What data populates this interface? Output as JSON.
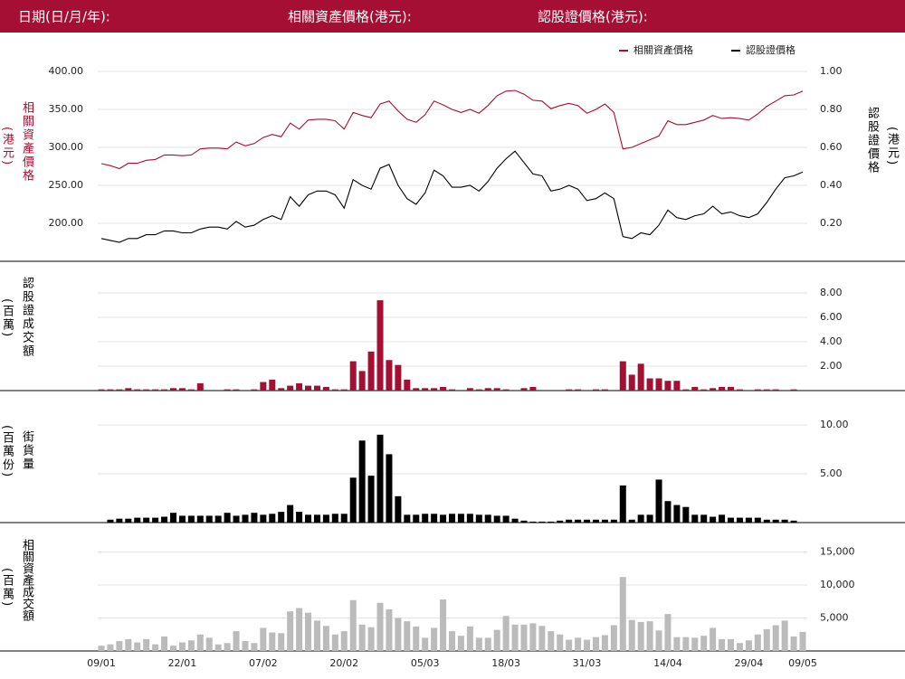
{
  "header": {
    "date_label": "日期(日/月/年):",
    "underlying_label": "相關資產價格(港元):",
    "warrant_label": "認股證價格(港元):"
  },
  "chart_data": [
    {
      "type": "line",
      "y_label": "相關資產價格",
      "y_unit": "(港元)",
      "y2_label": "認股證價格",
      "y2_unit": "(港元)",
      "legend": "top-right",
      "grid": true,
      "ylim": [
        175,
        415
      ],
      "yticks": [
        {
          "value": 200,
          "label": "200.00"
        },
        {
          "value": 250,
          "label": "250.00"
        },
        {
          "value": 300,
          "label": "300.00"
        },
        {
          "value": 350,
          "label": "350.00"
        },
        {
          "value": 400,
          "label": "400.00"
        }
      ],
      "y2lim": [
        0.1,
        1.06
      ],
      "y2ticks": [
        {
          "value": 0.2,
          "label": "0.20"
        },
        {
          "value": 0.4,
          "label": "0.40"
        },
        {
          "value": 0.6,
          "label": "0.60"
        },
        {
          "value": 0.8,
          "label": "0.80"
        },
        {
          "value": 1.0,
          "label": "1.00"
        }
      ],
      "series": [
        {
          "name": "相關資產價格",
          "color": "#a50f34",
          "values": [
            278.6,
            276,
            272,
            279,
            279,
            283,
            284,
            290,
            290,
            289,
            290,
            298,
            299,
            299,
            298,
            307,
            302,
            305,
            313,
            317,
            314,
            332,
            324,
            336,
            337,
            337,
            335,
            324,
            346,
            342,
            339,
            357,
            361,
            348,
            337,
            333,
            343,
            361,
            356,
            350,
            346,
            350,
            345,
            355,
            368,
            374,
            375,
            370,
            362,
            361,
            351,
            355,
            358,
            355,
            345,
            350,
            357,
            346,
            298,
            300,
            305,
            310,
            315,
            335,
            330,
            330,
            333,
            336,
            342,
            338,
            339,
            338,
            336,
            344,
            354,
            361,
            368,
            369,
            374
          ]
        },
        {
          "name": "認股證價格",
          "color": "#000000",
          "axis": "y2",
          "values": [
            0.12,
            0.11,
            0.1,
            0.12,
            0.12,
            0.14,
            0.14,
            0.16,
            0.16,
            0.15,
            0.15,
            0.17,
            0.18,
            0.18,
            0.17,
            0.21,
            0.18,
            0.19,
            0.22,
            0.24,
            0.22,
            0.34,
            0.29,
            0.35,
            0.37,
            0.37,
            0.35,
            0.28,
            0.43,
            0.4,
            0.38,
            0.49,
            0.51,
            0.4,
            0.33,
            0.3,
            0.36,
            0.48,
            0.45,
            0.39,
            0.39,
            0.4,
            0.37,
            0.42,
            0.49,
            0.54,
            0.58,
            0.52,
            0.46,
            0.45,
            0.37,
            0.38,
            0.4,
            0.38,
            0.32,
            0.33,
            0.36,
            0.33,
            0.13,
            0.12,
            0.15,
            0.14,
            0.19,
            0.27,
            0.23,
            0.22,
            0.24,
            0.25,
            0.29,
            0.25,
            0.26,
            0.24,
            0.23,
            0.25,
            0.31,
            0.38,
            0.44,
            0.45,
            0.47
          ]
        }
      ]
    },
    {
      "type": "bar",
      "y_label": "認股證成交額",
      "y_unit": "(百萬)",
      "color": "#a50f34",
      "grid": true,
      "ylim": [
        0,
        10
      ],
      "yticks": [
        {
          "value": 2,
          "label": "2.00"
        },
        {
          "value": 4,
          "label": "4.00"
        },
        {
          "value": 6,
          "label": "6.00"
        },
        {
          "value": 8,
          "label": "8.00"
        }
      ],
      "values": [
        0.1,
        0.1,
        0.1,
        0.2,
        0.1,
        0.1,
        0.1,
        0.1,
        0.2,
        0.2,
        0.1,
        0.6,
        0,
        0,
        0.1,
        0.1,
        0,
        0.1,
        0.7,
        0.9,
        0.2,
        0.4,
        0.6,
        0.4,
        0.4,
        0.3,
        0.1,
        0.1,
        2.4,
        1.6,
        3.2,
        7.4,
        2.5,
        2.1,
        0.9,
        0.2,
        0.2,
        0.2,
        0.3,
        0.1,
        0,
        0.2,
        0.1,
        0.2,
        0.2,
        0.1,
        0,
        0.2,
        0.3,
        0,
        0,
        0,
        0.1,
        0.1,
        0,
        0.1,
        0.1,
        0,
        2.4,
        1.3,
        2.2,
        1.0,
        1.0,
        0.8,
        0.8,
        0.1,
        0.3,
        0.1,
        0.2,
        0.3,
        0.3,
        0.1,
        0,
        0.1,
        0.1,
        0.1,
        0,
        0.1,
        0
      ]
    },
    {
      "type": "bar",
      "y_label": "街貨量",
      "y_unit": "(百萬份)",
      "color": "#000000",
      "grid": true,
      "ylim": [
        0,
        12
      ],
      "yticks": [
        {
          "value": 5,
          "label": "5.00"
        },
        {
          "value": 10,
          "label": "10.00"
        }
      ],
      "values": [
        0,
        0.3,
        0.4,
        0.4,
        0.5,
        0.5,
        0.5,
        0.6,
        1.0,
        0.7,
        0.7,
        0.7,
        0.7,
        0.7,
        1.0,
        0.7,
        0.8,
        1.0,
        0.8,
        0.9,
        1.1,
        1.8,
        1.1,
        0.8,
        0.8,
        0.8,
        0.9,
        0.9,
        4.6,
        8.4,
        4.8,
        9.0,
        7.0,
        2.7,
        0.8,
        0.8,
        0.9,
        0.9,
        0.8,
        0.9,
        0.9,
        0.9,
        0.8,
        0.8,
        0.7,
        0.7,
        0.4,
        0.2,
        0.1,
        0.1,
        0.1,
        0.2,
        0.3,
        0.3,
        0.3,
        0.3,
        0.3,
        0.3,
        3.8,
        0.3,
        0.8,
        0.8,
        4.4,
        2.2,
        1.8,
        1.6,
        0.8,
        0.8,
        0.6,
        0.8,
        0.5,
        0.5,
        0.5,
        0.5,
        0.3,
        0.3,
        0.3,
        0.2,
        0
      ]
    },
    {
      "type": "bar",
      "y_label": "相關資產成交額",
      "y_unit": "(百萬)",
      "color": "#bbbbbb",
      "grid": true,
      "ylim": [
        0,
        18000
      ],
      "yticks": [
        {
          "value": 5000,
          "label": "5,000"
        },
        {
          "value": 10000,
          "label": "10,000"
        },
        {
          "value": 15000,
          "label": "15,000"
        }
      ],
      "categories": [
        "09/01",
        null,
        null,
        null,
        null,
        null,
        null,
        null,
        null,
        "22/01",
        null,
        null,
        null,
        null,
        null,
        null,
        null,
        null,
        "07/02",
        null,
        null,
        null,
        null,
        null,
        null,
        null,
        null,
        "20/02",
        null,
        null,
        null,
        null,
        null,
        null,
        null,
        null,
        "05/03",
        null,
        null,
        null,
        null,
        null,
        null,
        null,
        null,
        "18/03",
        null,
        null,
        null,
        null,
        null,
        null,
        null,
        null,
        "31/03",
        null,
        null,
        null,
        null,
        null,
        null,
        null,
        null,
        "14/04",
        null,
        null,
        null,
        null,
        null,
        null,
        null,
        null,
        "29/04",
        null,
        null,
        null,
        null,
        null,
        "09/05"
      ],
      "values": [
        800,
        1000,
        1500,
        1800,
        1300,
        1800,
        1000,
        2200,
        800,
        1300,
        1600,
        2500,
        2000,
        1000,
        1200,
        3000,
        1500,
        1200,
        3500,
        2800,
        2700,
        6000,
        6500,
        5800,
        4600,
        3800,
        2500,
        3000,
        7700,
        4000,
        3600,
        7300,
        6300,
        5000,
        4500,
        3700,
        2000,
        3500,
        7800,
        3000,
        2300,
        3700,
        2000,
        2000,
        3200,
        5300,
        4000,
        4000,
        4200,
        3800,
        3000,
        2500,
        1700,
        2000,
        1700,
        2100,
        2400,
        3900,
        11200,
        4700,
        4400,
        4500,
        3100,
        5600,
        2100,
        2100,
        2000,
        2300,
        3500,
        1800,
        1800,
        1200,
        1600,
        2500,
        3300,
        3900,
        4600,
        2200,
        2900
      ]
    }
  ]
}
